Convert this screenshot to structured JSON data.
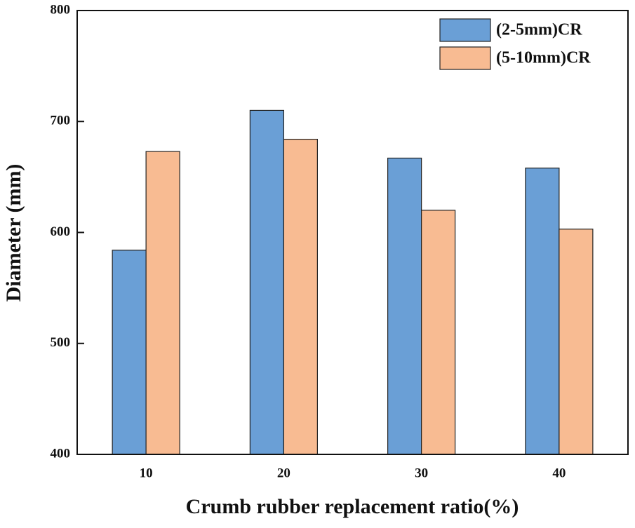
{
  "chart_data": {
    "type": "bar",
    "x_label": "Crumb rubber replacement ratio(%)",
    "y_label": "Diameter (mm)",
    "categories": [
      "10",
      "20",
      "30",
      "40"
    ],
    "series": [
      {
        "name": "(2-5mm)CR",
        "color": "#6a9fd6",
        "values": [
          584,
          710,
          667,
          658
        ]
      },
      {
        "name": "(5-10mm)CR",
        "color": "#f8bb92",
        "values": [
          673,
          684,
          620,
          603
        ]
      }
    ],
    "ylim": [
      400,
      800
    ],
    "yticks": [
      400,
      500,
      600,
      700,
      800
    ],
    "grid": false,
    "legend": "upper right"
  }
}
